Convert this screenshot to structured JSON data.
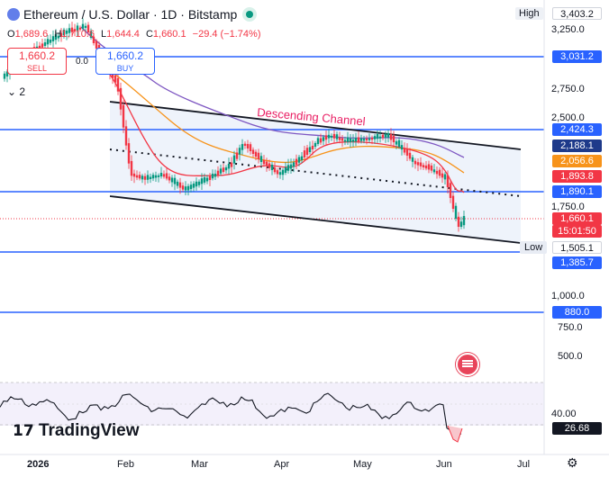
{
  "header": {
    "title": "Ethereum / U.S. Dollar · 1D · Bitstamp",
    "ohlc": [
      {
        "k": "O",
        "v": "1,689.6"
      },
      {
        "k": "H",
        "v": "1,710.6"
      },
      {
        "k": "L",
        "v": "1,644.4"
      },
      {
        "k": "C",
        "v": "1,660.1"
      },
      {
        "k": "",
        "v": "−29.4 (−1.74%)"
      }
    ],
    "sell_price": "1,660.2",
    "sell_label": "SELL",
    "buy_price": "1,660.2",
    "buy_label": "BUY",
    "spread": "0.0",
    "indicators_count": "2"
  },
  "annotation": "Descending Channel",
  "high_tag": "High",
  "low_tag": "Low",
  "price_axis": {
    "ticks": [
      "3,250.0",
      "2,750.0",
      "2,500.0",
      "1,750.0",
      "1,000.0",
      "750.0",
      "500.0"
    ],
    "labels": [
      {
        "id": "high",
        "text": "3,403.2",
        "bg": "#ffffff",
        "fg": "#131722"
      },
      {
        "id": "h3031",
        "text": "3,031.2",
        "bg": "#2962ff",
        "fg": "#ffffff"
      },
      {
        "id": "h2424",
        "text": "2,424.3",
        "bg": "#2962ff",
        "fg": "#ffffff"
      },
      {
        "id": "ma200",
        "text": "2,188.1",
        "bg": "#1e3a8a",
        "fg": "#ffffff"
      },
      {
        "id": "ma100",
        "text": "2,056.6",
        "bg": "#f7931a",
        "fg": "#ffffff"
      },
      {
        "id": "ma50",
        "text": "1,893.8",
        "bg": "#f23645",
        "fg": "#ffffff"
      },
      {
        "id": "h1890",
        "text": "1,890.1",
        "bg": "#2962ff",
        "fg": "#ffffff"
      },
      {
        "id": "price",
        "text": "1,660.1",
        "bg": "#f23645",
        "fg": "#ffffff"
      },
      {
        "id": "timer",
        "text": "15:01:50",
        "bg": "#f23645",
        "fg": "#ffffff"
      },
      {
        "id": "low",
        "text": "1,505.1",
        "bg": "#ffffff",
        "fg": "#131722"
      },
      {
        "id": "h1385",
        "text": "1,385.7",
        "bg": "#2962ff",
        "fg": "#ffffff"
      },
      {
        "id": "h880",
        "text": "880.0",
        "bg": "#2962ff",
        "fg": "#ffffff"
      }
    ]
  },
  "rsi_axis": {
    "tick": "40.00",
    "value": "26.68"
  },
  "time_axis": [
    "2026",
    "Feb",
    "Mar",
    "Apr",
    "May",
    "Jun",
    "Jul"
  ],
  "branding": "TradingView",
  "colors": {
    "up": "#089981",
    "down": "#f23645",
    "level": "#2962ff",
    "ma50": "#f23645",
    "ma100": "#f7931a",
    "ma200": "#7e57c2",
    "annotation": "#e91e63"
  }
}
